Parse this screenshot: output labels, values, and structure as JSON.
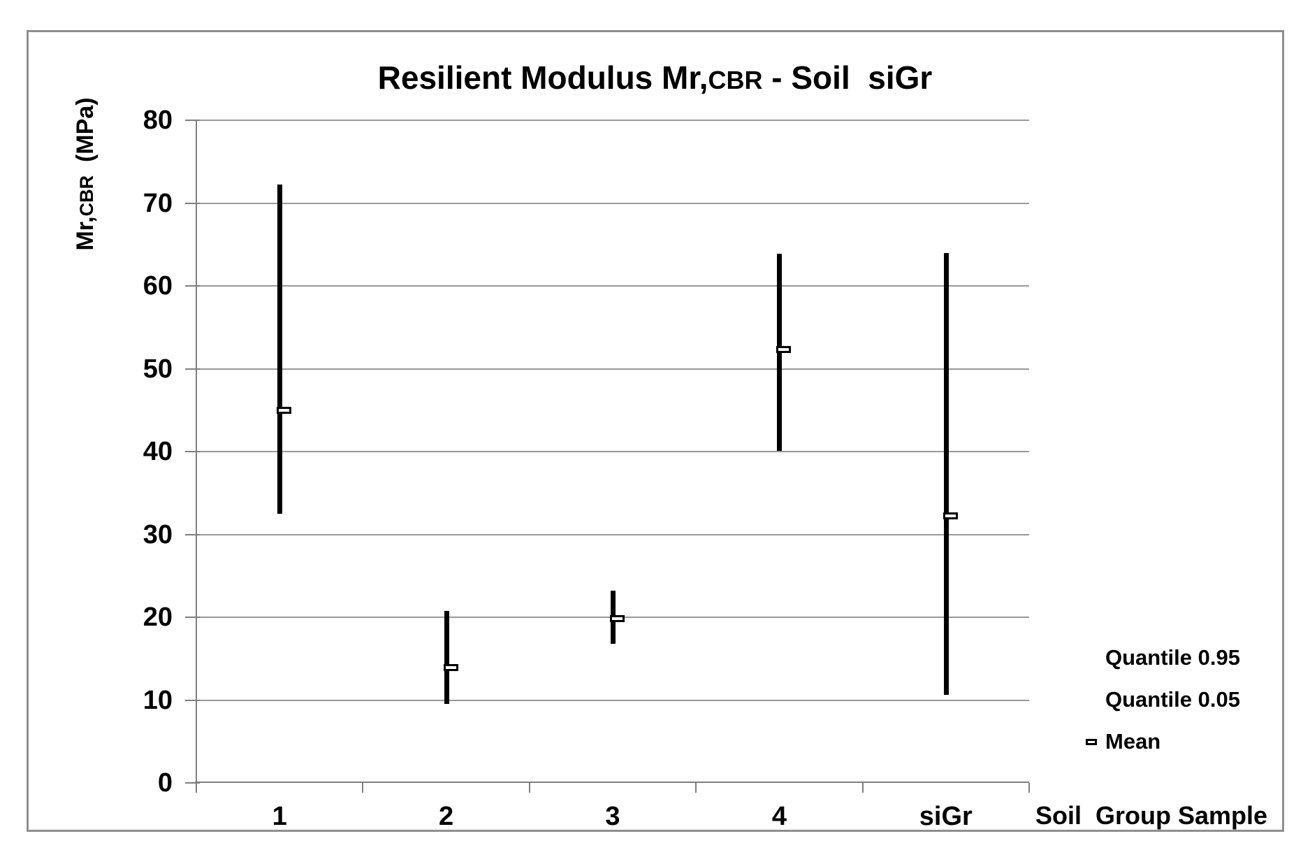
{
  "chart_data": {
    "type": "bar",
    "subtype": "quantile-range (vertical high-low bars with open-rect mean markers)",
    "title": "Resilient Modulus Mr,CBR - Soil  siGr",
    "title_parts": {
      "main": "Resilient Modulus Mr,",
      "sub": "CBR",
      "suffix": " - Soil  siGr"
    },
    "xlabel": "Soil  Group Sample",
    "ylabel": "Mr,CBR  (MPa)",
    "ylabel_parts": {
      "main": "Mr,",
      "sub": "CBR",
      "unit": "  (MPa)"
    },
    "categories": [
      "1",
      "2",
      "3",
      "4",
      "siGr"
    ],
    "series": [
      {
        "name": "Quantile 0.95",
        "legend_marker": "none",
        "values": [
          72.2,
          20.8,
          23.2,
          63.9,
          64.0
        ]
      },
      {
        "name": "Quantile 0.05",
        "legend_marker": "none",
        "values": [
          32.5,
          9.5,
          16.8,
          40.1,
          10.6
        ]
      },
      {
        "name": "Mean",
        "legend_marker": "open-rect",
        "values": [
          45.0,
          13.9,
          19.8,
          52.3,
          32.2
        ]
      }
    ],
    "ylim": [
      0,
      80
    ],
    "yticks": [
      0,
      10,
      20,
      30,
      40,
      50,
      60,
      70,
      80
    ],
    "grid": true,
    "legend_position": "bottom-right",
    "colors": {
      "bar": "#000000",
      "gridline": "#999999",
      "axis": "#7f7f7f",
      "frame_border": "#8f8f8f",
      "text": "#000000",
      "background": "#ffffff"
    }
  }
}
